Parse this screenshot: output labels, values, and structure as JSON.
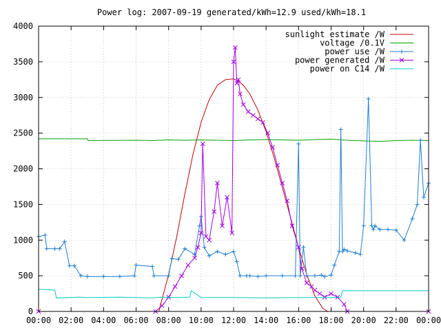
{
  "chart_data": {
    "type": "line",
    "title": "Power log: 2007-09-19 generated/kWh=12.9 used/kWh=18.1",
    "xlabel": "",
    "ylabel": "",
    "xlim": [
      0,
      24
    ],
    "ylim": [
      0,
      4000
    ],
    "grid": true,
    "legend_position": "top-right",
    "x_ticks": [
      "00:00",
      "02:00",
      "04:00",
      "06:00",
      "08:00",
      "10:00",
      "12:00",
      "14:00",
      "16:00",
      "18:00",
      "20:00",
      "22:00",
      "00:00"
    ],
    "y_ticks": [
      "0",
      "500",
      "1000",
      "1500",
      "2000",
      "2500",
      "3000",
      "3500",
      "4000"
    ],
    "series": [
      {
        "name": "sunlight estimate /W",
        "color": "#c00000",
        "marker": "none",
        "x": [
          7.4,
          8.0,
          8.5,
          9.0,
          9.5,
          10.0,
          10.5,
          11.0,
          11.5,
          12.0,
          12.3,
          12.6,
          13.0,
          13.5,
          14.0,
          14.5,
          15.0,
          15.5,
          16.0,
          16.5,
          17.0,
          17.5,
          17.8
        ],
        "y": [
          0,
          520,
          1050,
          1650,
          2200,
          2650,
          2970,
          3170,
          3250,
          3260,
          3230,
          3170,
          3050,
          2820,
          2520,
          2150,
          1740,
          1320,
          900,
          520,
          220,
          40,
          0
        ]
      },
      {
        "name": "voltage /0.1V",
        "color": "#00a000",
        "marker": "none",
        "x": [
          0,
          3,
          3.05,
          6,
          7,
          8,
          9,
          10,
          11,
          12,
          13,
          14,
          15,
          16,
          17,
          18,
          19,
          20,
          21,
          22,
          23,
          24
        ],
        "y": [
          2420,
          2420,
          2395,
          2400,
          2395,
          2405,
          2400,
          2405,
          2400,
          2395,
          2405,
          2410,
          2405,
          2400,
          2410,
          2415,
          2400,
          2390,
          2385,
          2395,
          2400,
          2395
        ]
      },
      {
        "name": "power use /W",
        "color": "#1e7fd0",
        "marker": "plus",
        "x": [
          0,
          0.4,
          0.5,
          1.0,
          1.3,
          1.6,
          1.9,
          2.2,
          2.6,
          3,
          4,
          5,
          5.9,
          6.0,
          7,
          7.1,
          8.0,
          8.2,
          8.6,
          9.0,
          9.6,
          9.9,
          10.0,
          10.2,
          10.5,
          11.0,
          11.5,
          12.0,
          12.2,
          12.4,
          12.8,
          13.0,
          13.5,
          14.0,
          15.0,
          15.8,
          16.0,
          16.1,
          16.3,
          16.5,
          17.0,
          17.4,
          17.6,
          18.0,
          18.2,
          18.5,
          18.6,
          18.7,
          18.8,
          19.0,
          19.5,
          19.8,
          20.0,
          20.3,
          20.5,
          20.6,
          20.7,
          21.0,
          21.5,
          22.0,
          22.5,
          23.0,
          23.3,
          23.5,
          23.7,
          24.0
        ],
        "y": [
          1050,
          1070,
          880,
          880,
          880,
          980,
          640,
          640,
          500,
          490,
          490,
          490,
          500,
          650,
          630,
          500,
          500,
          740,
          730,
          880,
          800,
          1200,
          1330,
          900,
          780,
          840,
          800,
          840,
          700,
          500,
          500,
          500,
          490,
          500,
          500,
          500,
          2350,
          500,
          900,
          500,
          500,
          510,
          490,
          510,
          650,
          840,
          2550,
          840,
          870,
          850,
          820,
          800,
          1200,
          2980,
          1200,
          1150,
          1200,
          1150,
          1150,
          1140,
          1000,
          1300,
          1500,
          2400,
          1600,
          1800
        ]
      },
      {
        "name": "power generated /W",
        "color": "#a000e0",
        "marker": "cross",
        "x": [
          0,
          7.2,
          7.6,
          8.0,
          8.4,
          8.8,
          9.2,
          9.6,
          9.8,
          10.0,
          10.1,
          10.3,
          10.5,
          10.8,
          11.0,
          11.3,
          11.6,
          11.9,
          12.0,
          12.1,
          12.2,
          12.3,
          12.4,
          12.6,
          12.9,
          13.2,
          13.5,
          13.8,
          14.1,
          14.4,
          14.7,
          15.0,
          15.3,
          15.6,
          16.0,
          16.2,
          16.5,
          16.8,
          17.0,
          17.3,
          17.6,
          18.0,
          18.4,
          18.8,
          19.0,
          24.0
        ],
        "y": [
          0,
          0,
          80,
          200,
          350,
          500,
          650,
          750,
          900,
          1100,
          2350,
          1050,
          1000,
          1400,
          1800,
          1200,
          1600,
          1100,
          3500,
          3700,
          3200,
          3250,
          3050,
          2900,
          2800,
          2750,
          2700,
          2650,
          2500,
          2300,
          2050,
          1800,
          1550,
          1200,
          900,
          600,
          400,
          350,
          300,
          250,
          200,
          250,
          200,
          100,
          0,
          0
        ]
      },
      {
        "name": "power on C14 /W",
        "color": "#00c8c8",
        "marker": "none",
        "x": [
          0,
          1.0,
          1.1,
          2.5,
          3,
          5,
          7,
          7.5,
          8.5,
          9.3,
          9.4,
          10,
          12,
          14,
          16,
          18,
          18.6,
          18.7,
          20.3,
          20.4,
          22,
          24
        ],
        "y": [
          310,
          300,
          190,
          200,
          195,
          200,
          190,
          200,
          195,
          200,
          290,
          195,
          195,
          190,
          195,
          195,
          200,
          290,
          290,
          290,
          290,
          290
        ]
      }
    ]
  }
}
